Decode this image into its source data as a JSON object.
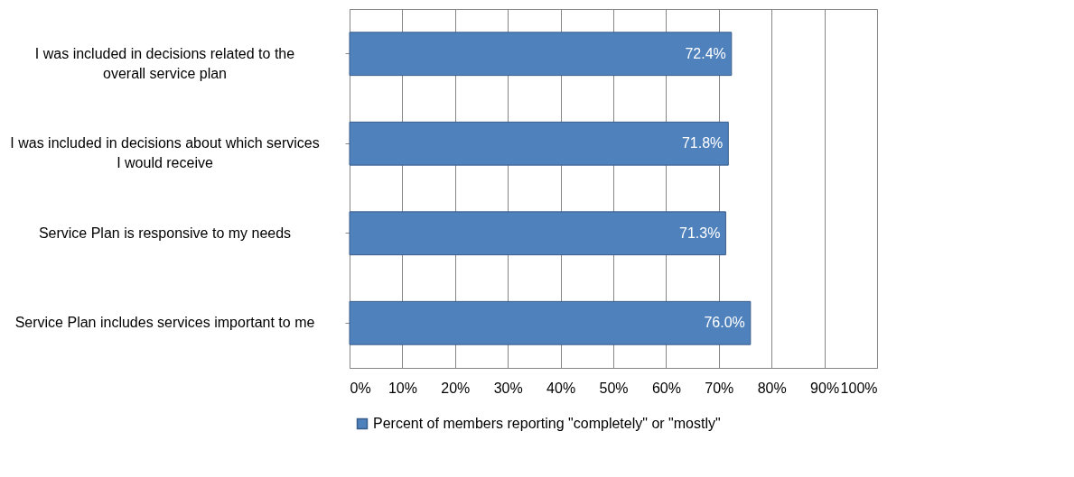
{
  "chart_data": {
    "type": "bar",
    "orientation": "horizontal",
    "categories": [
      "I was included in decisions related to the overall service plan",
      "I was included in decisions about which services I would receive",
      "Service Plan is responsive to my needs",
      "Service Plan includes services important to me"
    ],
    "series": [
      {
        "name": "Percent of members reporting \"completely\" or \"mostly\"",
        "color": "#4f81bd",
        "values": [
          72.4,
          71.8,
          71.3,
          76.0
        ],
        "value_labels": [
          "72.4%",
          "71.8%",
          "71.3%",
          "76.0%"
        ]
      }
    ],
    "xlim": [
      0,
      100
    ],
    "xticks": [
      {
        "value": 0,
        "label": "0%"
      },
      {
        "value": 10,
        "label": "10%"
      },
      {
        "value": 20,
        "label": "20%"
      },
      {
        "value": 30,
        "label": "30%"
      },
      {
        "value": 40,
        "label": "40%"
      },
      {
        "value": 50,
        "label": "50%"
      },
      {
        "value": 60,
        "label": "60%"
      },
      {
        "value": 70,
        "label": "70%"
      },
      {
        "value": 80,
        "label": "80%"
      },
      {
        "value": 90,
        "label": "90%"
      },
      {
        "value": 100,
        "label": "100%"
      }
    ],
    "grid": "x",
    "legend": "bottom"
  }
}
